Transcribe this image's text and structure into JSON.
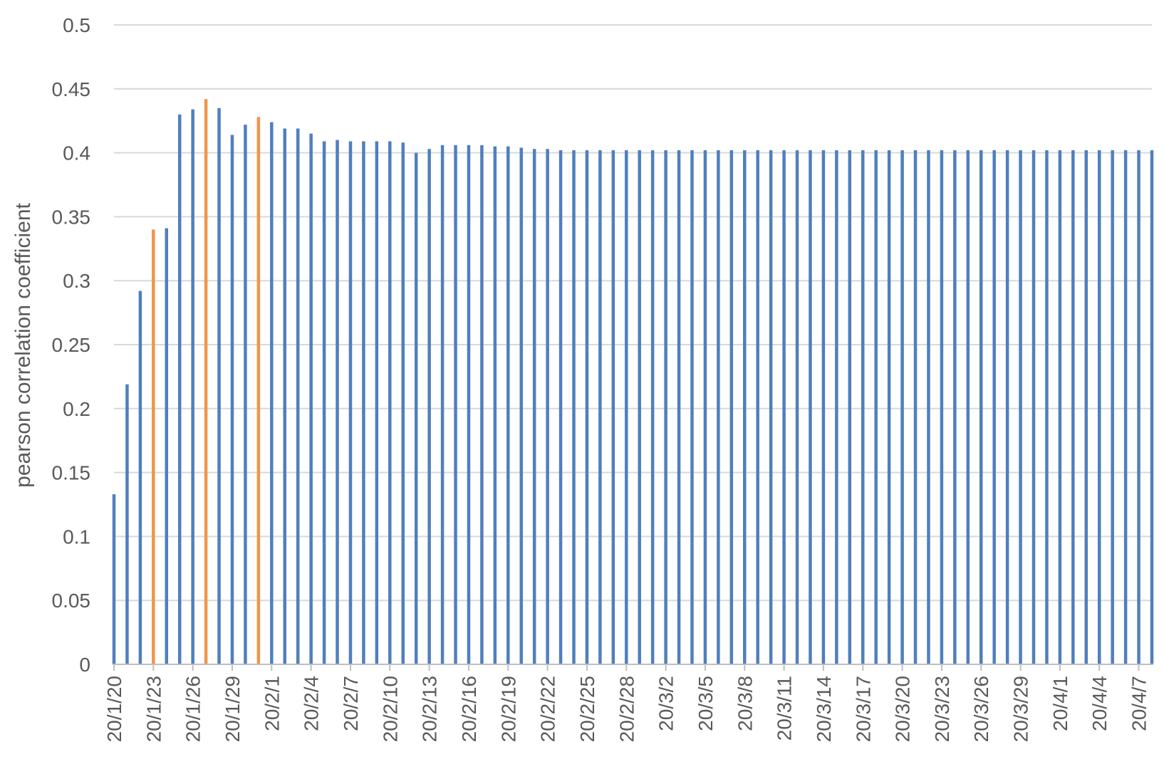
{
  "chart_data": {
    "type": "bar",
    "ylabel": "pearson correlation coefficient",
    "xlabel": "",
    "ylim": [
      0,
      0.5
    ],
    "yticks": [
      "0",
      "0.05",
      "0.1",
      "0.15",
      "0.2",
      "0.25",
      "0.3",
      "0.35",
      "0.4",
      "0.45",
      "0.5"
    ],
    "grid": true,
    "legend": "none",
    "colors": {
      "default": "#4f7fbe",
      "highlight": "#f0954a"
    },
    "x_tick_labels": [
      "20/1/20",
      "20/1/23",
      "20/1/26",
      "20/1/29",
      "20/2/1",
      "20/2/4",
      "20/2/7",
      "20/2/10",
      "20/2/13",
      "20/2/16",
      "20/2/19",
      "20/2/22",
      "20/2/25",
      "20/2/28",
      "20/3/2",
      "20/3/5",
      "20/3/8",
      "20/3/11",
      "20/3/14",
      "20/3/17",
      "20/3/20",
      "20/3/23",
      "20/3/26",
      "20/3/29",
      "20/4/1",
      "20/4/4",
      "20/4/7"
    ],
    "highlighted_categories": [
      "20/1/23",
      "20/1/27",
      "20/1/31"
    ],
    "categories": [
      "20/1/20",
      "20/1/21",
      "20/1/22",
      "20/1/23",
      "20/1/24",
      "20/1/25",
      "20/1/26",
      "20/1/27",
      "20/1/28",
      "20/1/29",
      "20/1/30",
      "20/1/31",
      "20/2/1",
      "20/2/2",
      "20/2/3",
      "20/2/4",
      "20/2/5",
      "20/2/6",
      "20/2/7",
      "20/2/8",
      "20/2/9",
      "20/2/10",
      "20/2/11",
      "20/2/12",
      "20/2/13",
      "20/2/14",
      "20/2/15",
      "20/2/16",
      "20/2/17",
      "20/2/18",
      "20/2/19",
      "20/2/20",
      "20/2/21",
      "20/2/22",
      "20/2/23",
      "20/2/24",
      "20/2/25",
      "20/2/26",
      "20/2/27",
      "20/2/28",
      "20/2/29",
      "20/3/1",
      "20/3/2",
      "20/3/3",
      "20/3/4",
      "20/3/5",
      "20/3/6",
      "20/3/7",
      "20/3/8",
      "20/3/9",
      "20/3/10",
      "20/3/11",
      "20/3/12",
      "20/3/13",
      "20/3/14",
      "20/3/15",
      "20/3/16",
      "20/3/17",
      "20/3/18",
      "20/3/19",
      "20/3/20",
      "20/3/21",
      "20/3/22",
      "20/3/23",
      "20/3/24",
      "20/3/25",
      "20/3/26",
      "20/3/27",
      "20/3/28",
      "20/3/29",
      "20/3/30",
      "20/3/31",
      "20/4/1",
      "20/4/2",
      "20/4/3",
      "20/4/4",
      "20/4/5",
      "20/4/6",
      "20/4/7",
      "20/4/8"
    ],
    "values": [
      0.133,
      0.219,
      0.292,
      0.34,
      0.341,
      0.43,
      0.434,
      0.442,
      0.435,
      0.414,
      0.422,
      0.428,
      0.424,
      0.419,
      0.419,
      0.415,
      0.409,
      0.41,
      0.409,
      0.409,
      0.409,
      0.409,
      0.408,
      0.4,
      0.403,
      0.406,
      0.406,
      0.406,
      0.406,
      0.405,
      0.405,
      0.404,
      0.403,
      0.403,
      0.402,
      0.402,
      0.402,
      0.402,
      0.402,
      0.402,
      0.402,
      0.402,
      0.402,
      0.402,
      0.402,
      0.402,
      0.402,
      0.402,
      0.402,
      0.402,
      0.402,
      0.402,
      0.402,
      0.402,
      0.402,
      0.402,
      0.402,
      0.402,
      0.402,
      0.402,
      0.402,
      0.402,
      0.402,
      0.402,
      0.402,
      0.402,
      0.402,
      0.402,
      0.402,
      0.402,
      0.402,
      0.402,
      0.402,
      0.402,
      0.402,
      0.402,
      0.402,
      0.402,
      0.402,
      0.402
    ]
  }
}
